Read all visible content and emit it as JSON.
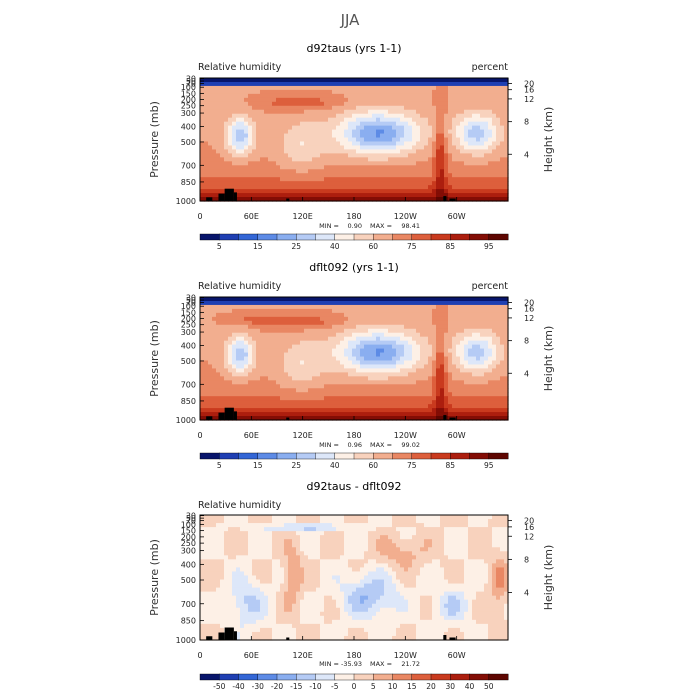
{
  "figure": {
    "title": "JJA"
  },
  "chart_data": [
    {
      "type": "heatmap",
      "title": "d92taus (yrs 1-1)",
      "subtitle_left": "Relative humidity",
      "subtitle_right": "percent",
      "ylabel": "Pressure (mb)",
      "ylabel_right": "Height (km)",
      "x_ticks": [
        "0",
        "60E",
        "120E",
        "180",
        "120W",
        "60W"
      ],
      "y_ticks": [
        "1000",
        "850",
        "700",
        "500",
        "400",
        "300",
        "250",
        "200",
        "150",
        "100",
        "70",
        "50",
        "30"
      ],
      "right_ticks": [
        "20",
        "16",
        "12",
        "8",
        "4"
      ],
      "stats": {
        "min_label": "MIN =",
        "min": "0.90",
        "max_label": "MAX =",
        "max": "98.41"
      },
      "colorbar": {
        "labels": [
          "5",
          "15",
          "25",
          "40",
          "60",
          "75",
          "85",
          "95"
        ],
        "colors": [
          "#08156b",
          "#1f3fb3",
          "#3366d6",
          "#5d8be6",
          "#8aaef0",
          "#b5cbf5",
          "#dde7f9",
          "#fdf0e6",
          "#f8d2bd",
          "#f2ae8f",
          "#e98763",
          "#dd5f3c",
          "#c93a1e",
          "#ac1e0e",
          "#830d05",
          "#5e0601"
        ]
      }
    },
    {
      "type": "heatmap",
      "title": "dflt092 (yrs 1-1)",
      "subtitle_left": "Relative humidity",
      "subtitle_right": "percent",
      "ylabel": "Pressure (mb)",
      "ylabel_right": "Height (km)",
      "x_ticks": [
        "0",
        "60E",
        "120E",
        "180",
        "120W",
        "60W"
      ],
      "y_ticks": [
        "1000",
        "850",
        "700",
        "500",
        "400",
        "300",
        "250",
        "200",
        "150",
        "100",
        "70",
        "50",
        "30"
      ],
      "right_ticks": [
        "20",
        "16",
        "12",
        "8",
        "4"
      ],
      "stats": {
        "min_label": "MIN =",
        "min": "0.96",
        "max_label": "MAX =",
        "max": "99.02"
      },
      "colorbar": {
        "labels": [
          "5",
          "15",
          "25",
          "40",
          "60",
          "75",
          "85",
          "95"
        ],
        "colors": [
          "#08156b",
          "#1f3fb3",
          "#3366d6",
          "#5d8be6",
          "#8aaef0",
          "#b5cbf5",
          "#dde7f9",
          "#fdf0e6",
          "#f8d2bd",
          "#f2ae8f",
          "#e98763",
          "#dd5f3c",
          "#c93a1e",
          "#ac1e0e",
          "#830d05",
          "#5e0601"
        ]
      }
    },
    {
      "type": "heatmap",
      "title": "d92taus - dflt092",
      "subtitle_left": "Relative humidity",
      "subtitle_right": "",
      "ylabel": "Pressure (mb)",
      "ylabel_right": "Height (km)",
      "x_ticks": [
        "0",
        "60E",
        "120E",
        "180",
        "120W",
        "60W"
      ],
      "y_ticks": [
        "1000",
        "850",
        "700",
        "500",
        "400",
        "300",
        "250",
        "200",
        "150",
        "100",
        "70",
        "50",
        "30"
      ],
      "right_ticks": [
        "20",
        "16",
        "12",
        "8",
        "4"
      ],
      "stats": {
        "min_label": "MIN =",
        "min": "-35.93",
        "max_label": "MAX =",
        "max": "21.72"
      },
      "colorbar": {
        "labels": [
          "-50",
          "-40",
          "-30",
          "-20",
          "-15",
          "-10",
          "-5",
          "0",
          "5",
          "10",
          "15",
          "20",
          "30",
          "40",
          "50"
        ],
        "colors": [
          "#08156b",
          "#1f3fb3",
          "#3366d6",
          "#5d8be6",
          "#8aaef0",
          "#b5cbf5",
          "#dde7f9",
          "#fdf0e6",
          "#f8d2bd",
          "#f2ae8f",
          "#e98763",
          "#dd5f3c",
          "#c93a1e",
          "#ac1e0e",
          "#830d05",
          "#5e0601"
        ]
      }
    }
  ]
}
